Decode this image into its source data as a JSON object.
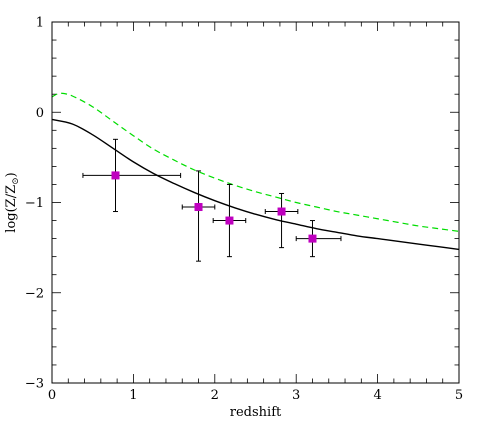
{
  "chart_data": {
    "type": "scatter",
    "xlabel": "redshift",
    "ylabel": "log(Z/Z",
    "ylabel_sub": "⊙",
    "ylabel_close": ")",
    "xlim": [
      0,
      5
    ],
    "ylim": [
      -3,
      1
    ],
    "x_major_ticks": [
      0,
      1,
      2,
      3,
      4,
      5
    ],
    "y_major_ticks": [
      -3,
      -2,
      -1,
      0,
      1
    ],
    "x_tick_labels": [
      "0",
      "1",
      "2",
      "3",
      "4",
      "5"
    ],
    "y_tick_labels": [
      "−3",
      "−2",
      "−1",
      "0",
      "1"
    ],
    "grid": false,
    "colors": {
      "points": "#bf00bf",
      "dashed": "#00dd00",
      "solid": "#000000"
    },
    "points": [
      {
        "x": 0.78,
        "y": -0.7,
        "xerr": [
          0.4,
          0.8
        ],
        "yerr": [
          0.4,
          0.4
        ]
      },
      {
        "x": 1.8,
        "y": -1.05,
        "xerr": [
          0.2,
          0.2
        ],
        "yerr": [
          0.4,
          0.6
        ]
      },
      {
        "x": 2.18,
        "y": -1.2,
        "xerr": [
          0.2,
          0.2
        ],
        "yerr": [
          0.4,
          0.4
        ]
      },
      {
        "x": 2.82,
        "y": -1.1,
        "xerr": [
          0.2,
          0.2
        ],
        "yerr": [
          0.2,
          0.4
        ]
      },
      {
        "x": 3.2,
        "y": -1.4,
        "xerr": [
          0.2,
          0.35
        ],
        "yerr": [
          0.2,
          0.2
        ]
      }
    ],
    "series": [
      {
        "style": "solid",
        "x": [
          0,
          0.25,
          0.5,
          0.75,
          1.0,
          1.25,
          1.5,
          1.75,
          2.0,
          2.25,
          2.5,
          2.75,
          3.0,
          3.25,
          3.5,
          3.75,
          4.0,
          4.25,
          4.5,
          4.75,
          5.0
        ],
        "y": [
          -0.08,
          -0.13,
          -0.25,
          -0.4,
          -0.55,
          -0.68,
          -0.79,
          -0.89,
          -0.98,
          -1.06,
          -1.13,
          -1.19,
          -1.24,
          -1.29,
          -1.33,
          -1.37,
          -1.4,
          -1.43,
          -1.46,
          -1.49,
          -1.52
        ]
      },
      {
        "style": "dashed",
        "x": [
          0,
          0.1,
          0.25,
          0.5,
          0.75,
          1.0,
          1.25,
          1.5,
          1.75,
          2.0,
          2.25,
          2.5,
          2.75,
          3.0,
          3.25,
          3.5,
          3.75,
          4.0,
          4.25,
          4.5,
          4.75,
          5.0
        ],
        "y": [
          0.17,
          0.21,
          0.18,
          0.06,
          -0.1,
          -0.26,
          -0.41,
          -0.53,
          -0.64,
          -0.73,
          -0.81,
          -0.88,
          -0.94,
          -1.0,
          -1.05,
          -1.1,
          -1.14,
          -1.18,
          -1.22,
          -1.26,
          -1.29,
          -1.32
        ]
      }
    ]
  }
}
